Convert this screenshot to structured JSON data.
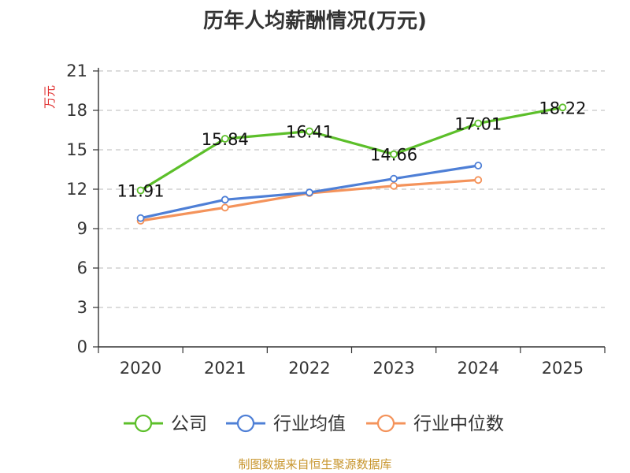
{
  "chart_data": {
    "type": "line",
    "title": "历年人均薪酬情况(万元)",
    "ylabel": "万元",
    "xlabel": "",
    "categories": [
      "2020",
      "2021",
      "2022",
      "2023",
      "2024",
      "2025"
    ],
    "ylim": [
      0,
      21
    ],
    "yticks": [
      0,
      3,
      6,
      9,
      12,
      15,
      18,
      21
    ],
    "grid": true,
    "legend_position": "bottom",
    "series": [
      {
        "name": "公司",
        "color": "#5cbf2a",
        "values": [
          11.91,
          15.84,
          16.41,
          14.66,
          17.01,
          18.22
        ],
        "labels": [
          "11.91",
          "15.84",
          "16.41",
          "14.66",
          "17.01",
          "18.22"
        ]
      },
      {
        "name": "行业均值",
        "color": "#4e7fd6",
        "values": [
          9.8,
          11.2,
          11.75,
          12.8,
          13.8,
          null
        ]
      },
      {
        "name": "行业中位数",
        "color": "#f4935b",
        "values": [
          9.6,
          10.6,
          11.7,
          12.25,
          12.7,
          null
        ]
      }
    ]
  },
  "source": "制图数据来自恒生聚源数据库"
}
